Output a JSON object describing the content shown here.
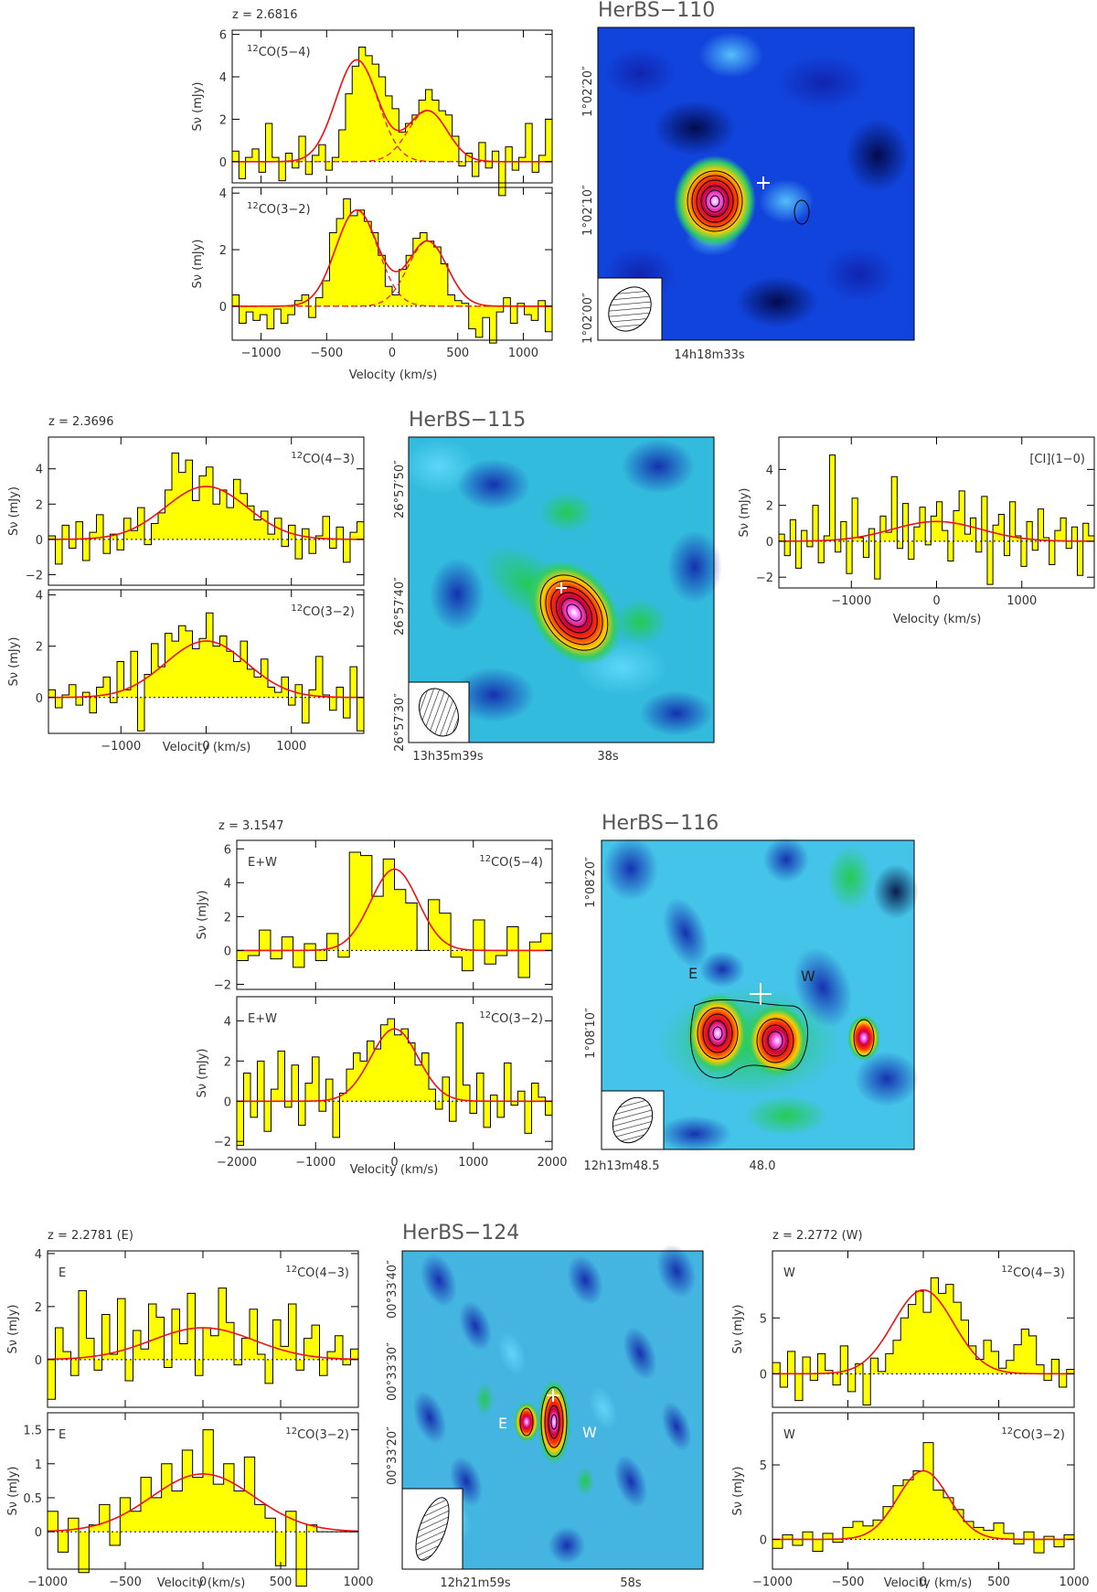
{
  "figure": {
    "sources": [
      {
        "name": "HerBS−110",
        "redshift": "z = 2.6816",
        "spectra": [
          {
            "line": "12CO(5−4)",
            "sup": "12",
            "species": "CO(5−4)",
            "ylabel": "Sν (mJy)",
            "yticks": [
              "0",
              "2",
              "4",
              "6"
            ],
            "ylim": [
              -1,
              6.2
            ],
            "gauss": [
              {
                "amp": 4.8,
                "center": -270,
                "sigma": 160
              },
              {
                "amp": 2.4,
                "center": 270,
                "sigma": 150
              }
            ],
            "values": [
              0.5,
              -0.8,
              0.2,
              0.6,
              -0.5,
              1.8,
              0.2,
              -0.9,
              0.4,
              -0.3,
              1.2,
              -0.6,
              0.3,
              0.8,
              -0.4,
              0.2,
              1.5,
              3.2,
              4.5,
              5.4,
              5.0,
              4.6,
              4.0,
              3.1,
              2.5,
              1.4,
              1.8,
              2.2,
              2.9,
              3.4,
              2.9,
              2.4,
              2.2,
              1.2,
              -0.2,
              0.4,
              -0.7,
              0.9,
              -0.3,
              0.5,
              -1.6,
              0.7,
              -0.4,
              0.2,
              1.8,
              -0.5,
              0.3,
              2.0
            ]
          },
          {
            "line": "12CO(3−2)",
            "sup": "12",
            "species": "CO(3−2)",
            "ylabel": "Sν (mJy)",
            "yticks": [
              "0",
              "2",
              "4"
            ],
            "ylim": [
              -1.2,
              4.2
            ],
            "gauss": [
              {
                "amp": 3.4,
                "center": -270,
                "sigma": 160
              },
              {
                "amp": 2.3,
                "center": 270,
                "sigma": 150
              }
            ],
            "values": [
              0.4,
              -0.6,
              -0.2,
              -0.5,
              -0.3,
              -0.8,
              -0.1,
              -0.6,
              -0.3,
              0.2,
              0.4,
              -0.4,
              0.3,
              0.9,
              2.6,
              3.1,
              3.8,
              3.2,
              3.4,
              3.0,
              2.6,
              1.8,
              0.7,
              0.4,
              1.3,
              1.8,
              2.4,
              2.6,
              2.3,
              2.1,
              1.5,
              0.4,
              0.2,
              0.1,
              -0.8,
              -1.1,
              -0.4,
              -1.3,
              -0.2,
              0.3,
              -0.6,
              0.1,
              -0.3,
              -0.5,
              0.2,
              -0.9
            ]
          }
        ],
        "xlabel": "Velocity (km/s)",
        "xticks": [
          "−1000",
          "−500",
          "0",
          "500",
          "1000"
        ],
        "xlim": [
          -1220,
          1220
        ],
        "map": {
          "ra_label": "14h18m33s",
          "dec_labels": [
            "1°02′20″",
            "1°02′10″",
            "1°02′00″"
          ]
        }
      },
      {
        "name": "HerBS−115",
        "redshift": "z = 2.3696",
        "spectra": [
          {
            "line": "12CO(4−3)",
            "sup": "12",
            "species": "CO(4−3)",
            "ylabel": "Sν (mJy)",
            "yticks": [
              "−2",
              "0",
              "2",
              "4"
            ],
            "ylim": [
              -2.6,
              5.8
            ],
            "gauss": [
              {
                "amp": 3.0,
                "center": 0,
                "sigma": 480
              }
            ],
            "values": [
              0.2,
              -1.4,
              0.8,
              -0.5,
              1.0,
              -1.2,
              0.4,
              1.4,
              -0.8,
              0.3,
              -0.6,
              1.2,
              0.5,
              1.8,
              -0.3,
              0.9,
              1.5,
              2.8,
              4.9,
              3.8,
              4.5,
              2.2,
              3.6,
              4.1,
              2.0,
              2.8,
              1.8,
              3.4,
              2.6,
              1.9,
              1.1,
              1.6,
              0.3,
              1.2,
              -0.4,
              0.8,
              -1.1,
              0.6,
              -0.8,
              0.2,
              1.3,
              -0.5,
              0.7,
              -1.3,
              0.4,
              1.0
            ]
          },
          {
            "line": "12CO(3−2)",
            "sup": "12",
            "species": "CO(3−2)",
            "ylabel": "Sν (mJy)",
            "yticks": [
              "0",
              "2",
              "4"
            ],
            "ylim": [
              -1.4,
              4.2
            ],
            "gauss": [
              {
                "amp": 2.2,
                "center": 0,
                "sigma": 480
              }
            ],
            "values": [
              0.3,
              -0.4,
              0.1,
              0.5,
              -0.3,
              0.2,
              -0.6,
              0.4,
              0.8,
              -0.2,
              1.4,
              0.3,
              1.8,
              -1.3,
              0.9,
              2.1,
              1.2,
              2.5,
              2.2,
              2.8,
              2.6,
              1.9,
              2.3,
              3.3,
              2.0,
              2.4,
              1.8,
              1.4,
              2.2,
              1.1,
              0.8,
              1.5,
              0.4,
              0.2,
              0.8,
              -0.3,
              0.5,
              -1.0,
              0.3,
              1.6,
              0.1,
              -0.5,
              0.4,
              -0.8,
              1.2,
              -1.3
            ]
          },
          {
            "line": "[CI](1−0)",
            "ylabel": "Sν (mJy)",
            "yticks": [
              "−2",
              "0",
              "2",
              "4"
            ],
            "ylim": [
              -2.6,
              5.8
            ],
            "gauss": [
              {
                "amp": 1.1,
                "center": 0,
                "sigma": 520
              }
            ],
            "values": [
              0.4,
              -0.8,
              1.2,
              -1.5,
              0.6,
              -0.3,
              2.0,
              -1.2,
              0.3,
              4.8,
              -0.6,
              1.1,
              -1.8,
              2.4,
              0.2,
              -0.9,
              0.7,
              -2.1,
              1.4,
              0.5,
              3.6,
              -0.4,
              2.1,
              -1.0,
              0.8,
              1.9,
              -0.2,
              1.4,
              2.2,
              0.6,
              -1.1,
              1.7,
              2.8,
              0.4,
              1.3,
              -0.6,
              2.5,
              -2.4,
              0.9,
              1.5,
              -0.8,
              2.2,
              0.3,
              -1.4,
              1.1,
              -0.5,
              1.8,
              0.2,
              -1.3,
              0.6,
              1.3,
              -0.4,
              0.8,
              -1.9,
              1.0,
              0.3
            ]
          }
        ],
        "xlabel": "Velocity (km/s)",
        "xticks": [
          "−1000",
          "0",
          "1000"
        ],
        "xlim": [
          -1850,
          1850
        ],
        "map": {
          "ra_labels": [
            "13h35m39s",
            "38s"
          ],
          "dec_labels": [
            "26°57′50″",
            "26°57′40″",
            "26°57′30″"
          ]
        }
      },
      {
        "name": "HerBS−116",
        "redshift": "z = 3.1547",
        "spectra": [
          {
            "line": "12CO(5−4)",
            "sup": "12",
            "species": "CO(5−4)",
            "tag": "E+W",
            "ylabel": "Sν (mJy)",
            "yticks": [
              "−2",
              "0",
              "2",
              "4",
              "6"
            ],
            "ylim": [
              -2.3,
              6.5
            ],
            "gauss": [
              {
                "amp": 4.8,
                "center": 0,
                "sigma": 300
              }
            ],
            "values": [
              -0.6,
              -0.3,
              1.2,
              -0.5,
              0.8,
              -1.0,
              0.4,
              -0.6,
              1.0,
              -0.4,
              5.8,
              5.6,
              3.2,
              5.4,
              3.6,
              2.8,
              0.0,
              3.0,
              2.2,
              -0.4,
              -1.2,
              1.8,
              -0.8,
              -0.3,
              1.4,
              -1.6,
              0.5,
              1.0
            ]
          },
          {
            "line": "12CO(3−2)",
            "sup": "12",
            "species": "CO(3−2)",
            "tag": "E+W",
            "ylabel": "Sν (mJy)",
            "yticks": [
              "−2",
              "0",
              "2",
              "4"
            ],
            "ylim": [
              -2.4,
              5.2
            ],
            "gauss": [
              {
                "amp": 3.6,
                "center": 0,
                "sigma": 300
              }
            ],
            "values": [
              -2.2,
              1.4,
              -0.8,
              2.0,
              -1.5,
              0.6,
              2.5,
              -0.3,
              1.8,
              -1.2,
              0.9,
              2.2,
              -0.5,
              1.1,
              -1.8,
              0.4,
              1.6,
              2.4,
              2.0,
              3.0,
              2.6,
              3.8,
              4.1,
              3.3,
              3.6,
              2.9,
              1.8,
              2.4,
              0.6,
              -0.4,
              1.2,
              -1.0,
              3.9,
              0.8,
              -0.6,
              1.4,
              -1.3,
              0.3,
              -0.8,
              1.9,
              -0.2,
              0.5,
              -1.6,
              0.9,
              0.2,
              -0.7
            ]
          }
        ],
        "xlabel": "Velocity (km/s)",
        "xticks": [
          "−2000",
          "−1000",
          "0",
          "1000",
          "2000"
        ],
        "xlim": [
          -2000,
          2000
        ],
        "map": {
          "labels": [
            "E",
            "W"
          ],
          "ra_labels": [
            "12h13m48.5",
            "48.0"
          ],
          "dec_labels": [
            "1°08′20″",
            "1°08′10″"
          ]
        }
      },
      {
        "name": "HerBS−124",
        "redshift_e": "z = 2.2781 (E)",
        "redshift_w": "z = 2.2772 (W)",
        "spectra": [
          {
            "line": "12CO(4−3)",
            "sup": "12",
            "species": "CO(4−3)",
            "tag": "E",
            "ylabel": "Sν (mJy)",
            "yticks": [
              "0",
              "2",
              "4"
            ],
            "ylim": [
              -1.8,
              4.1
            ],
            "gauss": [
              {
                "amp": 1.2,
                "center": 0,
                "sigma": 330
              }
            ],
            "values": [
              -1.5,
              1.2,
              0.3,
              -0.6,
              2.6,
              0.8,
              -0.4,
              1.7,
              0.2,
              2.3,
              -0.8,
              1.1,
              0.4,
              2.1,
              1.6,
              -0.3,
              1.9,
              0.6,
              2.5,
              -0.6,
              1.2,
              0.9,
              2.7,
              1.4,
              -0.2,
              0.8,
              1.9,
              0.2,
              -0.9,
              1.5,
              0.5,
              2.1,
              -0.4,
              0.8,
              1.3,
              -0.6,
              0.3,
              0.9,
              -0.2,
              0.4
            ]
          },
          {
            "line": "12CO(3−2)",
            "sup": "12",
            "species": "CO(3−2)",
            "tag": "E",
            "ylabel": "Sν (mJy)",
            "yticks": [
              "0",
              "0.5",
              "1",
              "1.5"
            ],
            "ylim": [
              -0.55,
              1.75
            ],
            "gauss": [
              {
                "amp": 0.85,
                "center": 0,
                "sigma": 330
              }
            ],
            "values": [
              0.3,
              -0.3,
              0.2,
              -0.6,
              0.1,
              0.4,
              -0.2,
              0.5,
              0.3,
              0.8,
              0.5,
              1.0,
              0.6,
              1.2,
              0.8,
              1.5,
              0.7,
              1.0,
              0.6,
              1.1,
              0.4,
              0.2,
              -0.5,
              0.3,
              -0.8,
              0.1,
              0,
              0,
              0,
              0
            ]
          },
          {
            "line": "12CO(4−3)",
            "sup": "12",
            "species": "CO(4−3)",
            "tag": "W",
            "ylabel": "Sν (mJy)",
            "yticks": [
              "0",
              "5"
            ],
            "ylim": [
              -3,
              11
            ],
            "gauss": [
              {
                "amp": 7.5,
                "center": 0,
                "sigma": 200
              }
            ],
            "values": [
              1.0,
              -1.2,
              2.0,
              -2.4,
              1.5,
              -0.6,
              1.8,
              0.3,
              -1.0,
              2.5,
              -1.6,
              0.9,
              -2.8,
              1.4,
              0.2,
              1.8,
              3.0,
              5.0,
              6.2,
              7.4,
              5.5,
              8.6,
              7.2,
              8.0,
              6.4,
              4.8,
              2.5,
              1.3,
              3.0,
              2.0,
              0.5,
              1.2,
              2.6,
              4.0,
              3.4,
              0.8,
              -0.6,
              1.3,
              -1.2,
              0.4
            ]
          },
          {
            "line": "12CO(3−2)",
            "sup": "12",
            "species": "CO(3−2)",
            "tag": "W",
            "ylabel": "Sν (mJy)",
            "yticks": [
              "0",
              "5"
            ],
            "ylim": [
              -2,
              8.5
            ],
            "gauss": [
              {
                "amp": 4.6,
                "center": 0,
                "sigma": 170
              }
            ],
            "values": [
              -0.6,
              0.3,
              -0.4,
              0.5,
              -0.8,
              0.4,
              -0.2,
              0.8,
              1.2,
              0.9,
              1.3,
              2.2,
              3.6,
              4.0,
              4.6,
              6.5,
              3.3,
              2.8,
              2.0,
              1.2,
              0.8,
              0.6,
              1.1,
              0.4,
              -0.3,
              0.5,
              -0.9,
              0.2,
              -0.5,
              0.3
            ]
          }
        ],
        "xlabel": "Velocity (km/s)",
        "xticks": [
          "−1000",
          "−500",
          "0",
          "500",
          "1000"
        ],
        "xlim": [
          -1000,
          1000
        ],
        "map": {
          "labels": [
            "E",
            "W"
          ],
          "ra_labels": [
            "12h21m59s",
            "58s"
          ],
          "dec_labels": [
            "00°33′40″",
            "00°33′30″",
            "00°33′20″"
          ]
        }
      }
    ]
  }
}
